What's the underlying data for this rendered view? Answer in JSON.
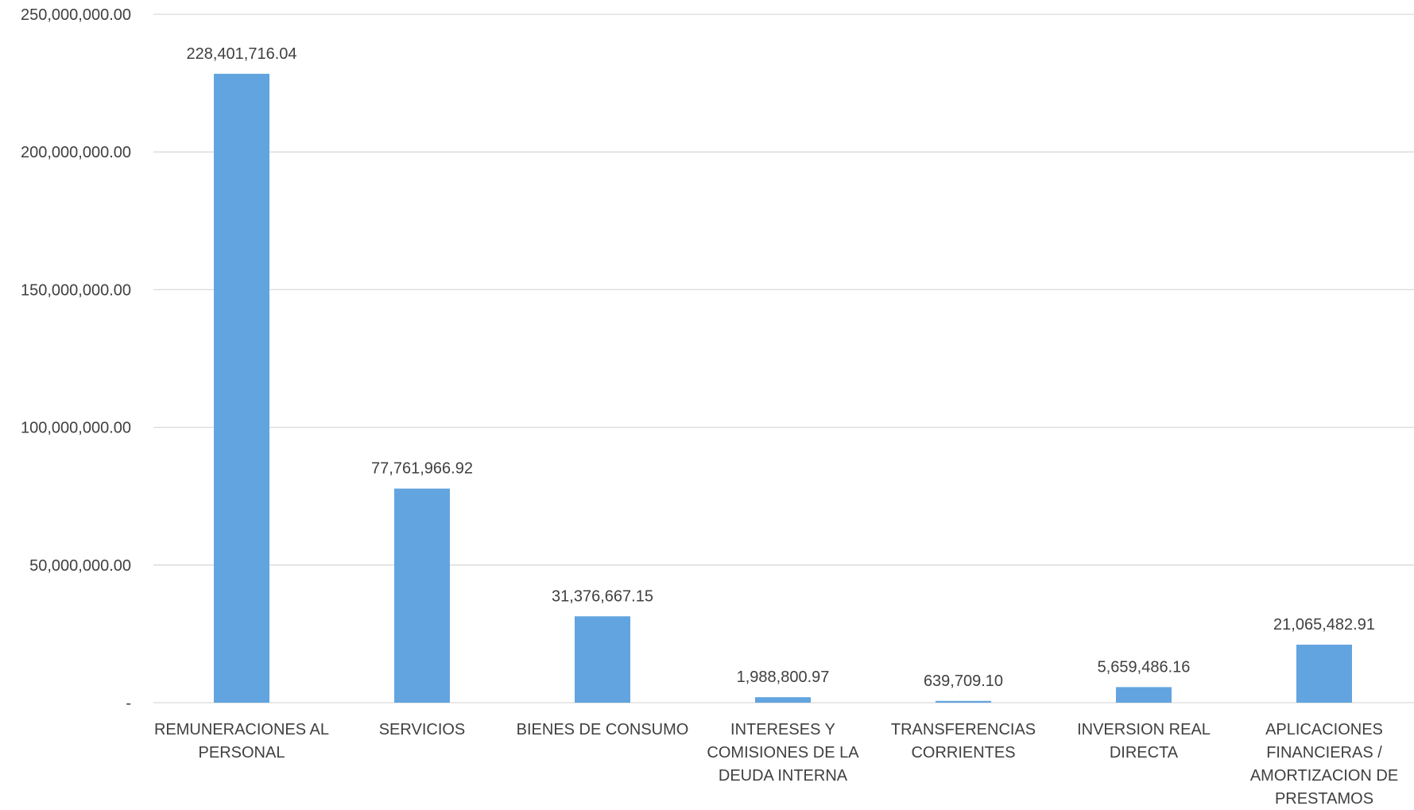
{
  "chart_data": {
    "type": "bar",
    "title": "",
    "xlabel": "",
    "ylabel": "",
    "ylim": [
      0,
      250000000
    ],
    "grid": true,
    "legend": "none",
    "bar_color": "#62A4DF",
    "grid_color": "#D9D9D9",
    "y_ticks": [
      {
        "value": 0,
        "label": "-"
      },
      {
        "value": 50000000,
        "label": "50,000,000.00"
      },
      {
        "value": 100000000,
        "label": "100,000,000.00"
      },
      {
        "value": 150000000,
        "label": "150,000,000.00"
      },
      {
        "value": 200000000,
        "label": "200,000,000.00"
      },
      {
        "value": 250000000,
        "label": "250,000,000.00"
      }
    ],
    "categories": [
      [
        "REMUNERACIONES AL",
        "PERSONAL"
      ],
      [
        "SERVICIOS"
      ],
      [
        "BIENES DE CONSUMO"
      ],
      [
        "INTERESES Y",
        "COMISIONES DE LA",
        "DEUDA INTERNA"
      ],
      [
        "TRANSFERENCIAS",
        "CORRIENTES"
      ],
      [
        "INVERSION REAL",
        "DIRECTA"
      ],
      [
        "APLICACIONES",
        "FINANCIERAS /",
        "AMORTIZACION DE",
        "PRESTAMOS"
      ]
    ],
    "values": [
      228401716.04,
      77761966.92,
      31376667.15,
      1988800.97,
      639709.1,
      5659486.16,
      21065482.91
    ],
    "data_labels": [
      "228,401,716.04",
      "77,761,966.92",
      "31,376,667.15",
      "1,988,800.97",
      "639,709.10",
      "5,659,486.16",
      "21,065,482.91"
    ]
  }
}
